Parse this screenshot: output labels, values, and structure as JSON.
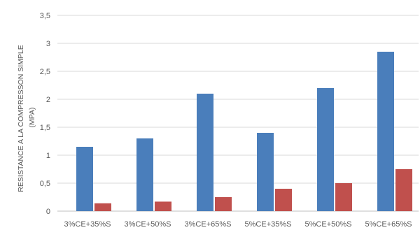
{
  "chart_data": {
    "type": "bar",
    "ylabel": [
      "RESISTANCE A LA COMPRESSON SIMPLE",
      "(MPA)"
    ],
    "categories": [
      "3%CE+35%S",
      "3%CE+50%S",
      "3%CE+65%S",
      "5%CE+35%S",
      "5%CE+50%S",
      "5%CE+65%S"
    ],
    "series": [
      {
        "color": "#4a7ebb",
        "values": [
          1.15,
          1.3,
          2.1,
          1.4,
          2.2,
          2.85
        ]
      },
      {
        "color": "#c0504d",
        "values": [
          0.14,
          0.17,
          0.25,
          0.4,
          0.5,
          0.75
        ]
      }
    ],
    "ylim": [
      0,
      3.5
    ],
    "yticks": [
      "0",
      "0,5",
      "1",
      "1,5",
      "2",
      "2,5",
      "3",
      "3,5"
    ],
    "grid": true,
    "legend": "none"
  }
}
